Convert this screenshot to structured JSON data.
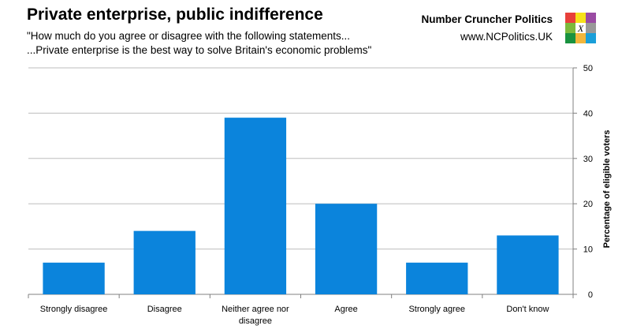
{
  "header": {
    "title": "Private enterprise, public indifference",
    "subtitle_line1": "\"How much do you agree or disagree with the following statements...",
    "subtitle_line2": "...Private enterprise is the best way to solve Britain's economic problems\"",
    "brand": "Number Cruncher Politics",
    "url": "www.NCPolitics.UK",
    "logo_letter": "X",
    "logo_colors": [
      "#e8403a",
      "#f6e11a",
      "#9a4ba3",
      "#7cba3b",
      "#ffffff",
      "#999999",
      "#19923f",
      "#f2b63b",
      "#1a9fd9"
    ]
  },
  "chart_data": {
    "type": "bar",
    "categories": [
      "Strongly disagree",
      "Disagree",
      "Neither agree nor disagree",
      "Agree",
      "Strongly agree",
      "Don't know"
    ],
    "category_lines": [
      [
        "Strongly disagree"
      ],
      [
        "Disagree"
      ],
      [
        "Neither agree nor",
        "disagree"
      ],
      [
        "Agree"
      ],
      [
        "Strongly agree"
      ],
      [
        "Don't know"
      ]
    ],
    "values": [
      7,
      14,
      39,
      20,
      7,
      13
    ],
    "ylabel": "Percentage of eligible voters",
    "ylim": [
      0,
      50
    ],
    "yticks": [
      0,
      10,
      20,
      30,
      40,
      50
    ],
    "y_axis_side": "right",
    "grid": true,
    "bar_color": "#0b84dc"
  }
}
